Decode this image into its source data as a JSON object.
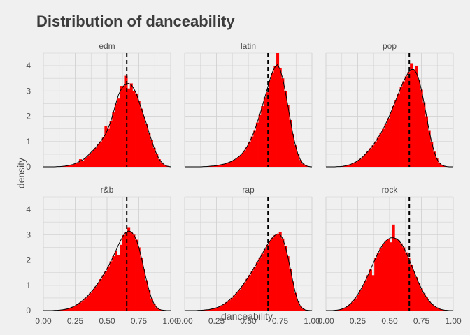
{
  "chart_data": {
    "type": "histogram",
    "title": "Distribution of danceability",
    "xlabel": "danceability",
    "ylabel": "density",
    "xlim": [
      0,
      1
    ],
    "ylim": [
      0,
      4.5
    ],
    "x_ticks": [
      "0.00",
      "0.25",
      "0.50",
      "0.75",
      "1.00"
    ],
    "y_ticks": [
      "0",
      "1",
      "2",
      "3",
      "4"
    ],
    "grid": true,
    "reference_line": 0.655,
    "colors": {
      "fill": "#ff0000",
      "density_line": "#000000",
      "reference_line": "#000000"
    },
    "bin_width": 0.02,
    "bin_centers": [
      0.01,
      0.03,
      0.05,
      0.07,
      0.09,
      0.11,
      0.13,
      0.15,
      0.17,
      0.19,
      0.21,
      0.23,
      0.25,
      0.27,
      0.29,
      0.31,
      0.33,
      0.35,
      0.37,
      0.39,
      0.41,
      0.43,
      0.45,
      0.47,
      0.49,
      0.51,
      0.53,
      0.55,
      0.57,
      0.59,
      0.61,
      0.63,
      0.65,
      0.67,
      0.69,
      0.71,
      0.73,
      0.75,
      0.77,
      0.79,
      0.81,
      0.83,
      0.85,
      0.87,
      0.89,
      0.91,
      0.93,
      0.95,
      0.97,
      0.99
    ],
    "facets": [
      {
        "name": "edm",
        "density": [
          0,
          0,
          0,
          0,
          0,
          0.01,
          0.01,
          0.02,
          0.03,
          0.05,
          0.07,
          0.09,
          0.13,
          0.17,
          0.23,
          0.28,
          0.35,
          0.45,
          0.55,
          0.65,
          0.75,
          0.88,
          1.0,
          1.15,
          1.3,
          1.55,
          1.8,
          2.15,
          2.5,
          2.85,
          3.05,
          3.2,
          3.28,
          3.3,
          3.25,
          3.1,
          2.9,
          2.6,
          2.3,
          2.0,
          1.7,
          1.35,
          1.05,
          0.75,
          0.5,
          0.3,
          0.17,
          0.08,
          0.03,
          0.01
        ],
        "hist": [
          0,
          0,
          0,
          0,
          0,
          0.01,
          0.01,
          0.02,
          0.03,
          0.05,
          0.07,
          0.09,
          0.13,
          0.17,
          0.3,
          0.25,
          0.35,
          0.45,
          0.55,
          0.65,
          0.75,
          0.88,
          1.0,
          1.15,
          1.6,
          1.5,
          1.8,
          2.15,
          2.5,
          2.7,
          3.2,
          3.2,
          3.6,
          3.1,
          3.3,
          3.0,
          2.9,
          2.6,
          2.3,
          2.0,
          1.7,
          1.35,
          1.05,
          0.75,
          0.5,
          0.3,
          0.17,
          0.08,
          0.03,
          0.01
        ]
      },
      {
        "name": "latin",
        "density": [
          0,
          0,
          0,
          0,
          0,
          0,
          0,
          0.01,
          0.01,
          0.02,
          0.03,
          0.04,
          0.05,
          0.07,
          0.09,
          0.11,
          0.14,
          0.18,
          0.22,
          0.28,
          0.34,
          0.42,
          0.52,
          0.64,
          0.8,
          0.98,
          1.2,
          1.45,
          1.75,
          2.05,
          2.4,
          2.75,
          3.1,
          3.45,
          3.75,
          3.95,
          4.05,
          3.85,
          3.5,
          3.0,
          2.45,
          1.85,
          1.3,
          0.85,
          0.5,
          0.27,
          0.12,
          0.05,
          0.02,
          0
        ],
        "hist": [
          0,
          0,
          0,
          0,
          0,
          0,
          0,
          0.01,
          0.01,
          0.02,
          0.03,
          0.04,
          0.05,
          0.07,
          0.09,
          0.11,
          0.14,
          0.18,
          0.22,
          0.28,
          0.34,
          0.42,
          0.52,
          0.64,
          0.8,
          0.98,
          1.2,
          1.45,
          1.75,
          2.05,
          2.4,
          2.75,
          2.95,
          3.45,
          3.7,
          4.0,
          4.5,
          3.9,
          3.5,
          3.0,
          2.45,
          1.85,
          1.3,
          0.85,
          0.5,
          0.27,
          0.12,
          0.05,
          0.02,
          0
        ]
      },
      {
        "name": "pop",
        "density": [
          0,
          0,
          0,
          0,
          0.01,
          0.01,
          0.02,
          0.04,
          0.06,
          0.09,
          0.13,
          0.18,
          0.24,
          0.31,
          0.4,
          0.5,
          0.61,
          0.73,
          0.85,
          1.0,
          1.15,
          1.32,
          1.5,
          1.7,
          1.92,
          2.15,
          2.4,
          2.65,
          2.9,
          3.15,
          3.38,
          3.58,
          3.75,
          3.85,
          3.85,
          3.72,
          3.45,
          3.05,
          2.55,
          2.0,
          1.45,
          0.98,
          0.6,
          0.33,
          0.16,
          0.07,
          0.03,
          0.01,
          0,
          0
        ],
        "hist": [
          0,
          0,
          0,
          0,
          0.01,
          0.01,
          0.02,
          0.04,
          0.06,
          0.09,
          0.13,
          0.18,
          0.24,
          0.31,
          0.4,
          0.5,
          0.61,
          0.73,
          0.85,
          1.0,
          1.15,
          1.32,
          1.5,
          1.7,
          1.92,
          2.15,
          2.4,
          2.65,
          2.9,
          3.15,
          3.38,
          3.58,
          3.75,
          4.1,
          3.85,
          4.0,
          3.45,
          3.05,
          2.55,
          2.0,
          1.45,
          0.98,
          0.6,
          0.33,
          0.16,
          0.07,
          0.03,
          0.01,
          0,
          0
        ]
      },
      {
        "name": "r&b",
        "density": [
          0,
          0,
          0,
          0,
          0.01,
          0.01,
          0.02,
          0.03,
          0.05,
          0.07,
          0.1,
          0.14,
          0.19,
          0.25,
          0.32,
          0.4,
          0.49,
          0.59,
          0.7,
          0.82,
          0.95,
          1.09,
          1.24,
          1.4,
          1.57,
          1.75,
          1.95,
          2.15,
          2.37,
          2.6,
          2.8,
          2.98,
          3.1,
          3.15,
          3.12,
          3.0,
          2.8,
          2.5,
          2.1,
          1.65,
          1.2,
          0.8,
          0.48,
          0.26,
          0.12,
          0.05,
          0.02,
          0.01,
          0,
          0
        ],
        "hist": [
          0,
          0,
          0,
          0,
          0.01,
          0.01,
          0.02,
          0.03,
          0.05,
          0.07,
          0.1,
          0.14,
          0.19,
          0.25,
          0.32,
          0.4,
          0.49,
          0.59,
          0.7,
          0.82,
          0.95,
          1.09,
          1.24,
          1.4,
          1.57,
          1.75,
          1.95,
          2.15,
          2.37,
          2.2,
          2.6,
          2.98,
          3.1,
          3.3,
          3.12,
          3.0,
          2.8,
          2.5,
          2.1,
          1.65,
          1.2,
          0.8,
          0.48,
          0.26,
          0.12,
          0.05,
          0.02,
          0.01,
          0,
          0
        ]
      },
      {
        "name": "rap",
        "density": [
          0,
          0,
          0,
          0,
          0,
          0.01,
          0.01,
          0.02,
          0.03,
          0.04,
          0.06,
          0.08,
          0.11,
          0.15,
          0.2,
          0.26,
          0.33,
          0.41,
          0.5,
          0.6,
          0.71,
          0.83,
          0.96,
          1.1,
          1.25,
          1.4,
          1.56,
          1.73,
          1.9,
          2.07,
          2.25,
          2.43,
          2.6,
          2.75,
          2.88,
          2.98,
          3.03,
          3.0,
          2.85,
          2.55,
          2.15,
          1.65,
          1.15,
          0.7,
          0.37,
          0.17,
          0.07,
          0.02,
          0.01,
          0
        ],
        "hist": [
          0,
          0,
          0,
          0,
          0,
          0.01,
          0.01,
          0.02,
          0.03,
          0.04,
          0.06,
          0.08,
          0.11,
          0.15,
          0.2,
          0.26,
          0.33,
          0.41,
          0.5,
          0.6,
          0.71,
          0.83,
          0.96,
          1.1,
          1.25,
          1.4,
          1.56,
          1.73,
          1.9,
          2.07,
          2.25,
          2.43,
          2.6,
          2.75,
          2.88,
          2.98,
          3.03,
          3.1,
          2.85,
          2.55,
          2.15,
          1.65,
          1.15,
          0.7,
          0.37,
          0.17,
          0.07,
          0.02,
          0.01,
          0
        ]
      },
      {
        "name": "rock",
        "density": [
          0,
          0,
          0,
          0.01,
          0.02,
          0.04,
          0.07,
          0.11,
          0.17,
          0.25,
          0.35,
          0.48,
          0.63,
          0.8,
          0.98,
          1.18,
          1.4,
          1.62,
          1.85,
          2.07,
          2.28,
          2.47,
          2.63,
          2.75,
          2.83,
          2.88,
          2.88,
          2.85,
          2.78,
          2.66,
          2.5,
          2.3,
          2.07,
          1.82,
          1.57,
          1.32,
          1.08,
          0.87,
          0.68,
          0.52,
          0.38,
          0.27,
          0.19,
          0.12,
          0.07,
          0.04,
          0.02,
          0.01,
          0,
          0
        ],
        "hist": [
          0,
          0,
          0,
          0.01,
          0.02,
          0.04,
          0.07,
          0.11,
          0.17,
          0.25,
          0.35,
          0.48,
          0.63,
          0.8,
          0.98,
          1.18,
          1.4,
          1.62,
          1.4,
          2.07,
          2.28,
          2.47,
          2.63,
          2.75,
          2.83,
          2.7,
          3.4,
          2.85,
          2.78,
          2.66,
          2.5,
          2.3,
          2.07,
          1.82,
          1.57,
          1.32,
          1.08,
          0.87,
          0.68,
          0.52,
          0.38,
          0.27,
          0.19,
          0.12,
          0.07,
          0.04,
          0.02,
          0.01,
          0,
          0
        ]
      }
    ]
  }
}
